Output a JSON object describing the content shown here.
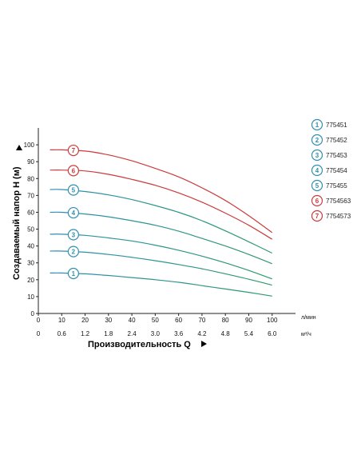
{
  "chart_data": {
    "type": "line",
    "ylabel": "Создаваемый напор H (м)",
    "xlabel": "Производительность Q",
    "x_unit_primary": "л/мин",
    "x_unit_secondary": "м³/ч",
    "xlim": [
      0,
      110
    ],
    "ylim": [
      0,
      110
    ],
    "x_ticks": [
      0,
      10,
      20,
      30,
      40,
      50,
      60,
      70,
      80,
      90,
      100
    ],
    "x_ticks_secondary": [
      "0",
      "0.6",
      "1.2",
      "1.8",
      "2.4",
      "3.0",
      "3.6",
      "4.2",
      "4.8",
      "5.4",
      "6.0"
    ],
    "y_ticks": [
      0,
      10,
      20,
      30,
      40,
      50,
      60,
      70,
      80,
      90,
      100
    ],
    "x": [
      5,
      10,
      20,
      30,
      40,
      50,
      60,
      70,
      80,
      90,
      100
    ],
    "series": [
      {
        "name": "775451",
        "badge": "1",
        "color": "#2f8fb0",
        "values": [
          24,
          24,
          23.5,
          22.5,
          21.3,
          20,
          18.5,
          16.5,
          14.5,
          12.5,
          10.3
        ]
      },
      {
        "name": "775452",
        "badge": "2",
        "color": "#2f8fb0",
        "values": [
          37,
          37,
          36.3,
          35,
          33.3,
          31.3,
          29,
          26.5,
          23.5,
          20.3,
          16.8
        ]
      },
      {
        "name": "775453",
        "badge": "3",
        "color": "#2f8fb0",
        "values": [
          47,
          47,
          46.3,
          44.8,
          43,
          40.5,
          37.5,
          34,
          30,
          25.5,
          20.5
        ]
      },
      {
        "name": "775454",
        "badge": "4",
        "color": "#2f8fb0",
        "values": [
          60,
          60,
          59,
          57.3,
          55,
          52.3,
          48.8,
          44.5,
          40,
          35,
          29.5
        ]
      },
      {
        "name": "775455",
        "badge": "5",
        "color": "#2f8fb0",
        "values": [
          73.5,
          73.5,
          72.3,
          70.3,
          67.5,
          64,
          60,
          55,
          49,
          42.5,
          35.8
        ]
      },
      {
        "name": "7754563",
        "badge": "6",
        "color": "#cc3b3b",
        "values": [
          85,
          85,
          84.5,
          82.5,
          79.5,
          76,
          71.5,
          66,
          59.5,
          52.3,
          44
        ]
      },
      {
        "name": "7754573",
        "badge": "7",
        "color": "#cc3b3b",
        "values": [
          97,
          97,
          96.3,
          94,
          90.5,
          86,
          81,
          74.5,
          67,
          58,
          48
        ]
      }
    ],
    "legend_position": "right",
    "grid": false
  }
}
